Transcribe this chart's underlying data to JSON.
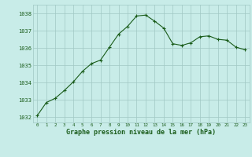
{
  "x": [
    0,
    1,
    2,
    3,
    4,
    5,
    6,
    7,
    8,
    9,
    10,
    11,
    12,
    13,
    14,
    15,
    16,
    17,
    18,
    19,
    20,
    21,
    22,
    23
  ],
  "y": [
    1032.1,
    1032.85,
    1033.1,
    1033.55,
    1034.05,
    1034.65,
    1035.1,
    1035.3,
    1036.05,
    1036.8,
    1037.25,
    1037.85,
    1037.9,
    1037.55,
    1037.15,
    1036.25,
    1036.15,
    1036.3,
    1036.65,
    1036.7,
    1036.5,
    1036.45,
    1036.05,
    1035.9
  ],
  "line_color": "#1a5c1a",
  "marker": "+",
  "bg_color": "#c8ece8",
  "grid_color": "#a0c8c4",
  "label_color": "#1a5c1a",
  "xlabel": "Graphe pression niveau de la mer (hPa)",
  "ylim": [
    1031.7,
    1038.5
  ],
  "xlim": [
    -0.5,
    23.5
  ],
  "yticks": [
    1032,
    1033,
    1034,
    1035,
    1036,
    1037,
    1038
  ],
  "xticks": [
    0,
    1,
    2,
    3,
    4,
    5,
    6,
    7,
    8,
    9,
    10,
    11,
    12,
    13,
    14,
    15,
    16,
    17,
    18,
    19,
    20,
    21,
    22,
    23
  ]
}
